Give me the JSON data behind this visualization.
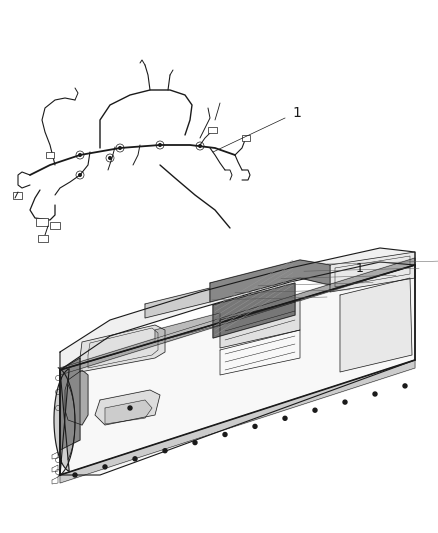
{
  "background_color": "#ffffff",
  "line_color": "#1a1a1a",
  "gray_fill": "#c8c8c8",
  "dark_fill": "#888888",
  "label_1": "1",
  "fig_width": 4.39,
  "fig_height": 5.33,
  "dpi": 100,
  "lw_thick": 1.2,
  "lw_med": 0.8,
  "lw_thin": 0.5,
  "lw_vthin": 0.35
}
